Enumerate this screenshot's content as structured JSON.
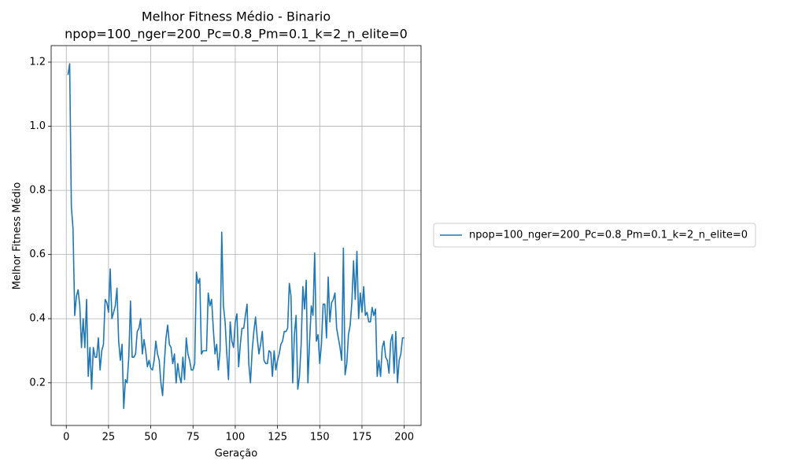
{
  "chart_data": {
    "type": "line",
    "title": "Melhor Fitness Médio - Binario",
    "subtitle": "npop=100_nger=200_Pc=0.8_Pm=0.1_k=2_n_elite=0",
    "x_label": "Geração",
    "y_label": "Melhor Fitness Médio",
    "x": [
      1,
      2,
      3,
      4,
      5,
      6,
      7,
      8,
      9,
      10,
      11,
      12,
      13,
      14,
      15,
      16,
      17,
      18,
      19,
      20,
      21,
      22,
      23,
      24,
      25,
      26,
      27,
      28,
      29,
      30,
      31,
      32,
      33,
      34,
      35,
      36,
      37,
      38,
      39,
      40,
      41,
      42,
      43,
      44,
      45,
      46,
      47,
      48,
      49,
      50,
      51,
      52,
      53,
      54,
      55,
      56,
      57,
      58,
      59,
      60,
      61,
      62,
      63,
      64,
      65,
      66,
      67,
      68,
      69,
      70,
      71,
      72,
      73,
      74,
      75,
      76,
      77,
      78,
      79,
      80,
      81,
      82,
      83,
      84,
      85,
      86,
      87,
      88,
      89,
      90,
      91,
      92,
      93,
      94,
      95,
      96,
      97,
      98,
      99,
      100,
      101,
      102,
      103,
      104,
      105,
      106,
      107,
      108,
      109,
      110,
      111,
      112,
      113,
      114,
      115,
      116,
      117,
      118,
      119,
      120,
      121,
      122,
      123,
      124,
      125,
      126,
      127,
      128,
      129,
      130,
      131,
      132,
      133,
      134,
      135,
      136,
      137,
      138,
      139,
      140,
      141,
      142,
      143,
      144,
      145,
      146,
      147,
      148,
      149,
      150,
      151,
      152,
      153,
      154,
      155,
      156,
      157,
      158,
      159,
      160,
      161,
      162,
      163,
      164,
      165,
      166,
      167,
      168,
      169,
      170,
      171,
      172,
      173,
      174,
      175,
      176,
      177,
      178,
      179,
      180,
      181,
      182,
      183,
      184,
      185,
      186,
      187,
      188,
      189,
      190,
      191,
      192,
      193,
      194,
      195,
      196,
      197,
      198,
      199,
      200
    ],
    "series": [
      {
        "name": "npop=100_nger=200_Pc=0.8_Pm=0.1_k=2_n_elite=0",
        "color": "#1f77b4",
        "values": [
          1.16,
          1.195,
          0.75,
          0.68,
          0.41,
          0.47,
          0.49,
          0.44,
          0.31,
          0.4,
          0.31,
          0.46,
          0.22,
          0.31,
          0.18,
          0.31,
          0.28,
          0.28,
          0.34,
          0.24,
          0.3,
          0.32,
          0.46,
          0.45,
          0.42,
          0.555,
          0.4,
          0.42,
          0.44,
          0.495,
          0.33,
          0.27,
          0.32,
          0.12,
          0.21,
          0.2,
          0.28,
          0.455,
          0.28,
          0.28,
          0.29,
          0.36,
          0.37,
          0.4,
          0.29,
          0.335,
          0.3,
          0.25,
          0.27,
          0.245,
          0.24,
          0.27,
          0.33,
          0.29,
          0.27,
          0.2,
          0.16,
          0.26,
          0.34,
          0.38,
          0.32,
          0.31,
          0.26,
          0.29,
          0.2,
          0.26,
          0.22,
          0.2,
          0.28,
          0.21,
          0.34,
          0.29,
          0.27,
          0.24,
          0.24,
          0.26,
          0.545,
          0.51,
          0.525,
          0.29,
          0.3,
          0.3,
          0.3,
          0.48,
          0.44,
          0.46,
          0.37,
          0.29,
          0.32,
          0.24,
          0.3,
          0.67,
          0.44,
          0.39,
          0.29,
          0.21,
          0.39,
          0.33,
          0.31,
          0.39,
          0.415,
          0.25,
          0.32,
          0.37,
          0.37,
          0.41,
          0.445,
          0.26,
          0.2,
          0.3,
          0.36,
          0.405,
          0.34,
          0.29,
          0.32,
          0.36,
          0.27,
          0.26,
          0.26,
          0.3,
          0.295,
          0.22,
          0.3,
          0.24,
          0.27,
          0.29,
          0.32,
          0.33,
          0.36,
          0.36,
          0.37,
          0.51,
          0.47,
          0.2,
          0.35,
          0.41,
          0.18,
          0.22,
          0.32,
          0.5,
          0.43,
          0.52,
          0.2,
          0.33,
          0.44,
          0.41,
          0.605,
          0.33,
          0.35,
          0.26,
          0.32,
          0.445,
          0.445,
          0.34,
          0.53,
          0.39,
          0.45,
          0.46,
          0.48,
          0.37,
          0.34,
          0.31,
          0.27,
          0.62,
          0.225,
          0.26,
          0.35,
          0.38,
          0.45,
          0.58,
          0.46,
          0.61,
          0.4,
          0.48,
          0.42,
          0.5,
          0.41,
          0.42,
          0.39,
          0.39,
          0.435,
          0.41,
          0.43,
          0.22,
          0.27,
          0.22,
          0.31,
          0.33,
          0.28,
          0.27,
          0.23,
          0.33,
          0.35,
          0.23,
          0.36,
          0.2,
          0.27,
          0.29,
          0.34,
          0.34
        ]
      }
    ],
    "xlim": [
      -8.95,
      209.95
    ],
    "ylim": [
      0.067,
      1.2515
    ],
    "xticks": [
      0,
      25,
      50,
      75,
      100,
      125,
      150,
      175,
      200
    ],
    "yticks": [
      0.2,
      0.4,
      0.6,
      0.8,
      {
        "value": 1,
        "label": "1.0"
      },
      1.2
    ],
    "grid": true,
    "legend": "right"
  }
}
